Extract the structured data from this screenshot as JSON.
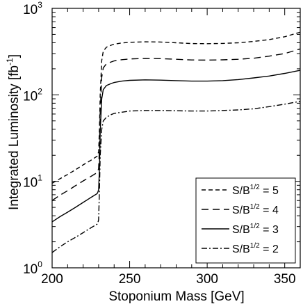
{
  "chart_data": {
    "type": "line",
    "xlabel": "Stoponium Mass   [GeV]",
    "ylabel_main": "Integrated Luminosity  [fb",
    "ylabel_sup": "-1",
    "ylabel_close": "]",
    "xlim": [
      200,
      360
    ],
    "ylim": [
      1,
      1000
    ],
    "yscale": "log",
    "x_ticks": [
      "200",
      "250",
      "300",
      "350"
    ],
    "y_ticks": [
      {
        "base": "10",
        "exp": "0"
      },
      {
        "base": "10",
        "exp": "1"
      },
      {
        "base": "10",
        "exp": "2"
      },
      {
        "base": "10",
        "exp": "3"
      }
    ],
    "legend_position": "bottom-right",
    "series": [
      {
        "name": "S/B1/2 = 5",
        "legend_base": "S/B",
        "legend_sup": "1/2",
        "legend_value": " = 5",
        "dash": "6,4",
        "x": [
          200,
          205,
          210,
          215,
          220,
          225,
          229,
          229.5,
          230,
          230.5,
          231,
          232,
          233,
          235,
          238,
          240,
          245,
          250,
          260,
          270,
          280,
          290,
          300,
          310,
          320,
          330,
          340,
          350,
          360
        ],
        "y": [
          9.5,
          10.7,
          12.0,
          13.6,
          15.5,
          17.5,
          19.5,
          20.5,
          22,
          40,
          100,
          250,
          320,
          355,
          375,
          385,
          398,
          405,
          410,
          408,
          400,
          392,
          390,
          393,
          400,
          415,
          435,
          470,
          530
        ]
      },
      {
        "name": "S/B1/2 = 4",
        "legend_base": "S/B",
        "legend_sup": "1/2",
        "legend_value": " = 4",
        "dash": "10,6",
        "x": [
          200,
          205,
          210,
          215,
          220,
          225,
          229,
          229.5,
          230,
          230.5,
          231,
          232,
          233,
          235,
          238,
          240,
          245,
          250,
          260,
          270,
          280,
          290,
          300,
          310,
          320,
          330,
          340,
          350,
          360
        ],
        "y": [
          6.0,
          6.9,
          7.8,
          8.9,
          10.1,
          11.4,
          12.6,
          13.2,
          14,
          25,
          65,
          160,
          205,
          228,
          240,
          247,
          255,
          260,
          263,
          262,
          258,
          253,
          252,
          254,
          258,
          265,
          280,
          300,
          340
        ]
      },
      {
        "name": "S/B1/2 = 3",
        "legend_base": "S/B",
        "legend_sup": "1/2",
        "legend_value": " = 3",
        "dash": "",
        "x": [
          200,
          205,
          210,
          215,
          220,
          225,
          229,
          229.5,
          230,
          230.5,
          231,
          232,
          233,
          235,
          238,
          240,
          245,
          250,
          260,
          270,
          280,
          290,
          300,
          310,
          320,
          330,
          340,
          350,
          360
        ],
        "y": [
          3.4,
          3.9,
          4.4,
          5.0,
          5.7,
          6.5,
          7.2,
          7.5,
          8,
          14,
          38,
          90,
          115,
          128,
          135,
          139,
          144,
          147,
          149,
          148,
          146,
          144,
          144,
          146,
          150,
          157,
          165,
          177,
          192
        ]
      },
      {
        "name": "S/B1/2 = 2",
        "legend_base": "S/B",
        "legend_sup": "1/2",
        "legend_value": " = 2",
        "dash": "8,3,2,3",
        "x": [
          200,
          205,
          210,
          215,
          220,
          225,
          229,
          229.5,
          230,
          230.5,
          231,
          232,
          233,
          235,
          238,
          240,
          245,
          250,
          260,
          270,
          280,
          290,
          300,
          310,
          320,
          330,
          340,
          350,
          360
        ],
        "y": [
          1.5,
          1.75,
          2.0,
          2.25,
          2.55,
          2.9,
          3.2,
          3.3,
          3.6,
          8,
          20,
          40,
          50,
          55,
          59,
          61,
          63,
          65,
          66,
          66,
          65.5,
          65,
          65,
          66,
          67,
          69,
          73,
          78,
          84
        ]
      }
    ]
  }
}
